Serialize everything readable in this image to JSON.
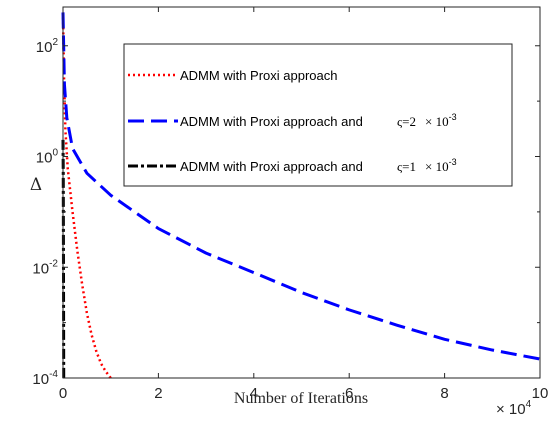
{
  "chart_data": {
    "type": "line",
    "xlabel": "Number of Iterations",
    "ylabel": "Δ",
    "x_multiplier_label": "× 10^4",
    "x_multiplier_base": "× 10",
    "x_multiplier_exp": "4",
    "xlim": [
      0,
      100000
    ],
    "ylim_log10": [
      -4,
      2.7
    ],
    "y_scale": "log",
    "x_ticks": [
      0,
      2,
      4,
      6,
      8,
      10
    ],
    "x_tick_labels": [
      "0",
      "2",
      "4",
      "6",
      "8",
      "10"
    ],
    "y_tick_exponents": [
      -4,
      -2,
      0,
      2
    ],
    "y_tick_labels": [
      {
        "base": "10",
        "exp": "-4"
      },
      {
        "base": "10",
        "exp": "-2"
      },
      {
        "base": "10",
        "exp": "0"
      },
      {
        "base": "10",
        "exp": "2"
      }
    ],
    "grid": false,
    "legend_position": "top-right",
    "series": [
      {
        "name": "ADMM with Proxi approach",
        "legend": {
          "text": "ADMM with Proxi approach",
          "sym": "",
          "mult": "",
          "exp": ""
        },
        "color": "#ff0000",
        "style": "dotted",
        "points": [
          [
            0,
            400
          ],
          [
            200,
            30
          ],
          [
            500,
            3
          ],
          [
            1000,
            0.6
          ],
          [
            2000,
            0.1
          ],
          [
            3000,
            0.02
          ],
          [
            4000,
            0.005
          ],
          [
            5000,
            0.0015
          ],
          [
            6000,
            0.0006
          ],
          [
            7000,
            0.0003
          ],
          [
            8000,
            0.00018
          ],
          [
            9000,
            0.00013
          ],
          [
            10000,
            0.0001
          ]
        ]
      },
      {
        "name": "ADMM with Proxi approach and ς=2 × 10^-3",
        "legend": {
          "text": "ADMM with Proxi approach and",
          "sym": "ς=2",
          "mult": "× 10",
          "exp": "-3"
        },
        "color": "#0000ff",
        "style": "dashed",
        "points": [
          [
            0,
            400
          ],
          [
            300,
            20
          ],
          [
            800,
            5
          ],
          [
            2000,
            1.4
          ],
          [
            5000,
            0.5
          ],
          [
            10000,
            0.2
          ],
          [
            15000,
            0.1
          ],
          [
            20000,
            0.05
          ],
          [
            30000,
            0.018
          ],
          [
            40000,
            0.008
          ],
          [
            50000,
            0.0035
          ],
          [
            60000,
            0.0017
          ],
          [
            70000,
            0.0009
          ],
          [
            80000,
            0.0005
          ],
          [
            90000,
            0.00032
          ],
          [
            100000,
            0.00022
          ]
        ]
      },
      {
        "name": "ADMM with Proxi approach and ς=1 × 10^-3",
        "legend": {
          "text": "ADMM with Proxi approach and",
          "sym": "ς=1",
          "mult": "× 10",
          "exp": "-3"
        },
        "color": "#000000",
        "style": "dashdot",
        "points": [
          [
            0,
            2
          ],
          [
            50,
            0.5
          ],
          [
            100,
            0.01
          ],
          [
            150,
            0.0001
          ]
        ]
      }
    ]
  }
}
